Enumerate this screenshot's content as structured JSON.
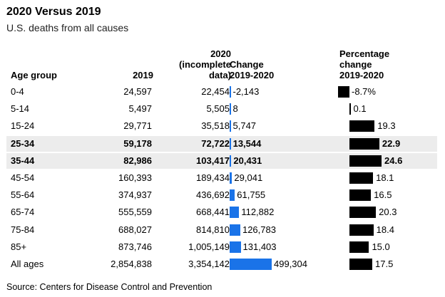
{
  "title": "2020 Versus 2019",
  "subtitle": "U.S. deaths from all causes",
  "headers": {
    "age_group": "Age group",
    "y2019": "2019",
    "y2020_line1": "2020",
    "y2020_line2": "(incomplete",
    "y2020_line3": "data)",
    "change_line1": "Change",
    "change_line2": "2019-2020",
    "pct_line1": "Percentage",
    "pct_line2": "change",
    "pct_line3": "2019-2020"
  },
  "source": "Source: Centers for Disease Control and Prevention",
  "colors": {
    "change_bar": "#1a73e8",
    "pct_bar": "#000000",
    "highlight_row": "#ececec"
  },
  "chart_data": {
    "type": "table",
    "columns": [
      "Age group",
      "2019",
      "2020 (incomplete data)",
      "Change 2019-2020",
      "Percentage change 2019-2020"
    ],
    "rows": [
      {
        "age": "0-4",
        "y2019": "24,597",
        "y2020": "22,454",
        "change": -2143,
        "change_label": "-2,143",
        "pct": -8.7,
        "pct_label": "-8.7%",
        "bold": false,
        "highlight": false
      },
      {
        "age": "5-14",
        "y2019": "5,497",
        "y2020": "5,505",
        "change": 8,
        "change_label": "8",
        "pct": 0.1,
        "pct_label": "0.1",
        "bold": false,
        "highlight": false
      },
      {
        "age": "15-24",
        "y2019": "29,771",
        "y2020": "35,518",
        "change": 5747,
        "change_label": "5,747",
        "pct": 19.3,
        "pct_label": "19.3",
        "bold": false,
        "highlight": false
      },
      {
        "age": "25-34",
        "y2019": "59,178",
        "y2020": "72,722",
        "change": 13544,
        "change_label": "13,544",
        "pct": 22.9,
        "pct_label": "22.9",
        "bold": true,
        "highlight": true
      },
      {
        "age": "35-44",
        "y2019": "82,986",
        "y2020": "103,417",
        "change": 20431,
        "change_label": "20,431",
        "pct": 24.6,
        "pct_label": "24.6",
        "bold": true,
        "highlight": true
      },
      {
        "age": "45-54",
        "y2019": "160,393",
        "y2020": "189,434",
        "change": 29041,
        "change_label": "29,041",
        "pct": 18.1,
        "pct_label": "18.1",
        "bold": false,
        "highlight": false
      },
      {
        "age": "55-64",
        "y2019": "374,937",
        "y2020": "436,692",
        "change": 61755,
        "change_label": "61,755",
        "pct": 16.5,
        "pct_label": "16.5",
        "bold": false,
        "highlight": false
      },
      {
        "age": "65-74",
        "y2019": "555,559",
        "y2020": "668,441",
        "change": 112882,
        "change_label": "112,882",
        "pct": 20.3,
        "pct_label": "20.3",
        "bold": false,
        "highlight": false
      },
      {
        "age": "75-84",
        "y2019": "688,027",
        "y2020": "814,810",
        "change": 126783,
        "change_label": "126,783",
        "pct": 18.4,
        "pct_label": "18.4",
        "bold": false,
        "highlight": false
      },
      {
        "age": "85+",
        "y2019": "873,746",
        "y2020": "1,005,149",
        "change": 131403,
        "change_label": "131,403",
        "pct": 15.0,
        "pct_label": "15.0",
        "bold": false,
        "highlight": false
      },
      {
        "age": "All ages",
        "y2019": "2,854,838",
        "y2020": "3,354,142",
        "change": 499304,
        "change_label": "499,304",
        "pct": 17.5,
        "pct_label": "17.5",
        "bold": false,
        "highlight": false
      }
    ]
  }
}
